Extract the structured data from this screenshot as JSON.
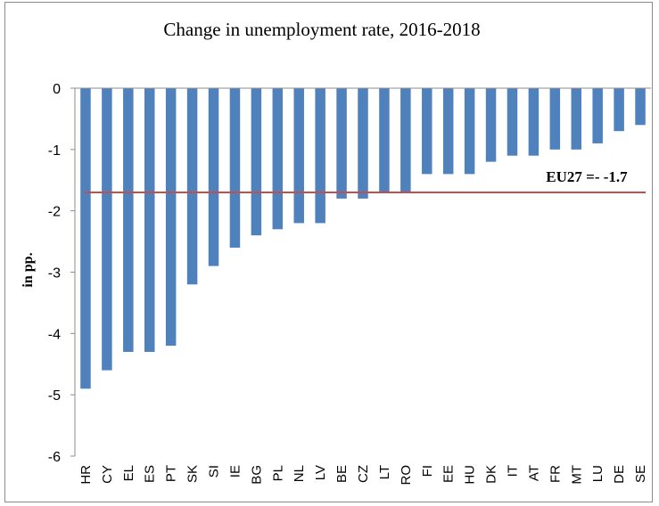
{
  "chart_data": {
    "type": "bar",
    "title": "Change in unemployment rate, 2016-2018",
    "xlabel": "",
    "ylabel": "in pp.",
    "ylim": [
      -6,
      0
    ],
    "yticks": [
      0,
      -1,
      -2,
      -3,
      -4,
      -5,
      -6
    ],
    "categories": [
      "HR",
      "CY",
      "EL",
      "ES",
      "PT",
      "SK",
      "SI",
      "IE",
      "BG",
      "PL",
      "NL",
      "LV",
      "BE",
      "CZ",
      "LT",
      "RO",
      "FI",
      "EE",
      "HU",
      "DK",
      "IT",
      "AT",
      "FR",
      "MT",
      "LU",
      "DE",
      "SE"
    ],
    "values": [
      -4.9,
      -4.6,
      -4.3,
      -4.3,
      -4.2,
      -3.2,
      -2.9,
      -2.6,
      -2.4,
      -2.3,
      -2.2,
      -2.2,
      -1.8,
      -1.8,
      -1.7,
      -1.7,
      -1.4,
      -1.4,
      -1.4,
      -1.2,
      -1.1,
      -1.1,
      -1.0,
      -1.0,
      -0.9,
      -0.7,
      -0.6
    ],
    "reference_line": {
      "value": -1.7,
      "label": "EU27 =- -1.7",
      "color": "#c0504d"
    },
    "bar_color": "#4f81bd",
    "grid": false,
    "legend": "none"
  }
}
